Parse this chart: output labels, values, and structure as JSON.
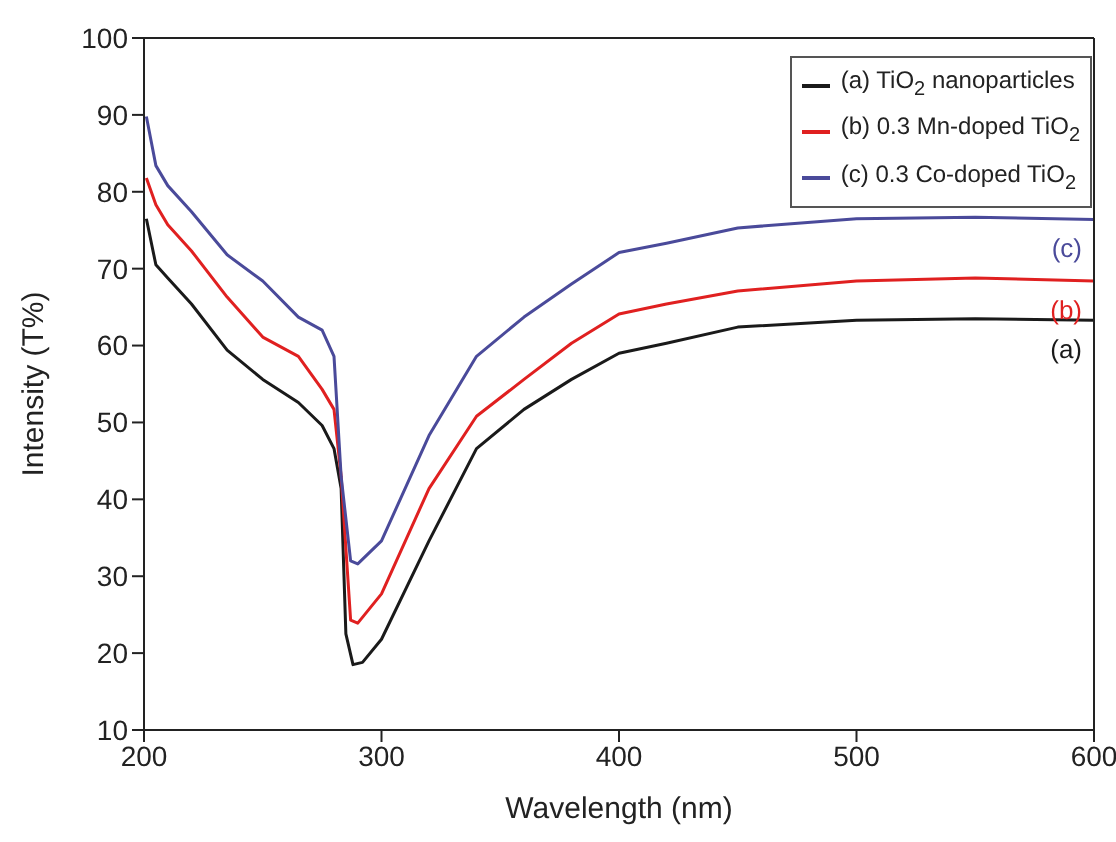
{
  "chart_data": {
    "type": "line",
    "xlabel": "Wavelength (nm)",
    "ylabel": "Intensity (T%)",
    "xlim": [
      200,
      600
    ],
    "xticks": [
      200,
      300,
      400,
      500,
      600
    ],
    "ylim": [
      10,
      100
    ],
    "yticks": [
      10,
      20,
      30,
      40,
      50,
      60,
      70,
      80,
      90,
      100
    ],
    "grid": false,
    "legend": "top right",
    "marker": "none",
    "line_style": "solid",
    "series": [
      {
        "name": "(a) TiO$_{2}$ nanoparticles",
        "color": "#1a1a1a",
        "x": [
          201,
          205,
          210,
          220,
          235,
          250,
          265,
          275,
          280,
          283,
          285,
          288,
          292,
          300,
          320,
          340,
          360,
          380,
          400,
          420,
          450,
          500,
          550,
          600
        ],
        "values": [
          76.5,
          70.5,
          68.8,
          65.4,
          59.4,
          55.6,
          52.6,
          49.6,
          46.6,
          41.4,
          22.5,
          18.5,
          18.8,
          21.8,
          34.6,
          46.6,
          51.7,
          55.6,
          59,
          60.3,
          62.4,
          63.3,
          63.5,
          63.3
        ]
      },
      {
        "name": "(b) 0.3 Mn-doped TiO$_{2}$",
        "color": "#e02020",
        "x": [
          201,
          205,
          210,
          220,
          235,
          250,
          265,
          275,
          280,
          283,
          287,
          290,
          300,
          320,
          340,
          360,
          380,
          400,
          420,
          450,
          500,
          550,
          600
        ],
        "values": [
          81.8,
          78.3,
          75.7,
          72.3,
          66.3,
          61.1,
          58.6,
          54.3,
          51.7,
          43,
          24.3,
          23.9,
          27.7,
          41.4,
          50.8,
          55.6,
          60.3,
          64.1,
          65.4,
          67.1,
          68.4,
          68.8,
          68.4
        ]
      },
      {
        "name": "(c) 0.3 Co-doped TiO$_{2}$",
        "color": "#4a4a9a",
        "x": [
          201,
          205,
          210,
          220,
          235,
          250,
          265,
          275,
          280,
          283,
          287,
          290,
          300,
          320,
          340,
          360,
          380,
          400,
          420,
          450,
          500,
          550,
          600
        ],
        "values": [
          89.8,
          83.4,
          80.8,
          77.4,
          71.8,
          68.4,
          63.7,
          62,
          58.6,
          43,
          32,
          31.6,
          34.6,
          48.3,
          58.6,
          63.7,
          68,
          72.1,
          73.3,
          75.3,
          76.5,
          76.7,
          76.4
        ]
      }
    ],
    "annotations": [
      "(a)",
      "(b)",
      "(c)"
    ]
  }
}
